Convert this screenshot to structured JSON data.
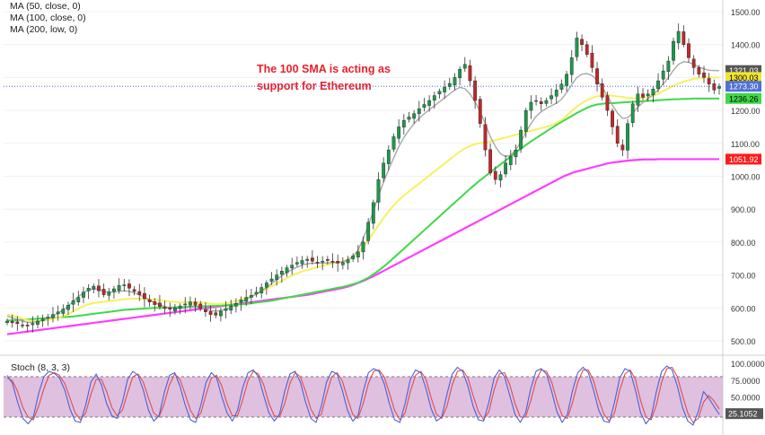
{
  "chart_data": {
    "type": "candlestick",
    "legends": [
      {
        "text": "MA (50, close, 0)"
      },
      {
        "text": "MA (100, close, 0)"
      },
      {
        "text": "MA (200, low, 0)"
      }
    ],
    "annotation": {
      "line1": "The 100 SMA is acting as",
      "line2": "support for Ethereum"
    },
    "price_axis": {
      "ticks": [
        "1500.00",
        "1400.00",
        "1300.00",
        "1200.00",
        "1100.00",
        "1000.00",
        "900.00",
        "800.00",
        "700.00",
        "600.00",
        "500.00"
      ],
      "tick_values": [
        1500,
        1400,
        1300,
        1200,
        1100,
        1000,
        900,
        800,
        700,
        600,
        500
      ],
      "ylim": [
        460,
        1540
      ]
    },
    "price_badges": [
      {
        "text": "1321.03",
        "value": 1321.03,
        "color": "#555555"
      },
      {
        "text": "1300.03",
        "value": 1300.03,
        "color": "#f2e52c"
      },
      {
        "text": "1273.30",
        "value": 1273.3,
        "color": "#4f6fd8"
      },
      {
        "text": "1236.26",
        "value": 1236.26,
        "color": "#3fd84a"
      },
      {
        "text": "1051.92",
        "value": 1051.92,
        "color": "#ff1a1a"
      }
    ],
    "current_price_line": 1273.3,
    "close_series": [
      560,
      555,
      552,
      548,
      545,
      553,
      560,
      566,
      572,
      580,
      588,
      596,
      608,
      622,
      632,
      648,
      660,
      666,
      652,
      640,
      648,
      658,
      668,
      670,
      660,
      650,
      640,
      628,
      618,
      610,
      604,
      598,
      596,
      600,
      606,
      612,
      618,
      608,
      598,
      588,
      580,
      578,
      590,
      598,
      606,
      614,
      624,
      632,
      638,
      648,
      662,
      676,
      688,
      700,
      712,
      722,
      730,
      738,
      744,
      748,
      742,
      738,
      742,
      744,
      740,
      736,
      738,
      746,
      758,
      770,
      800,
      860,
      920,
      990,
      1040,
      1080,
      1120,
      1150,
      1170,
      1180,
      1190,
      1205,
      1218,
      1230,
      1245,
      1258,
      1270,
      1282,
      1300,
      1325,
      1340,
      1290,
      1230,
      1160,
      1080,
      1010,
      990,
      1005,
      1040,
      1060,
      1080,
      1140,
      1200,
      1225,
      1230,
      1220,
      1230,
      1245,
      1262,
      1280,
      1310,
      1360,
      1420,
      1400,
      1370,
      1330,
      1280,
      1240,
      1200,
      1150,
      1100,
      1080,
      1160,
      1220,
      1250,
      1240,
      1250,
      1265,
      1290,
      1320,
      1350,
      1410,
      1440,
      1400,
      1360,
      1330,
      1310,
      1300,
      1280,
      1262,
      1273
    ],
    "ma50": [
      580,
      577,
      573,
      568,
      563,
      560,
      560,
      561,
      563,
      566,
      570,
      574,
      580,
      588,
      596,
      604,
      610,
      614,
      616,
      618,
      620,
      622,
      624,
      626,
      627,
      628,
      628,
      628,
      627,
      626,
      624,
      622,
      620,
      619,
      618,
      618,
      618,
      618,
      617,
      616,
      614,
      612,
      612,
      613,
      615,
      618,
      622,
      627,
      632,
      638,
      645,
      652,
      660,
      668,
      676,
      684,
      692,
      700,
      706,
      712,
      716,
      720,
      724,
      728,
      732,
      735,
      738,
      742,
      748,
      756,
      768,
      786,
      806,
      828,
      850,
      872,
      892,
      910,
      926,
      940,
      952,
      964,
      976,
      988,
      1000,
      1012,
      1024,
      1036,
      1048,
      1060,
      1072,
      1082,
      1090,
      1096,
      1100,
      1102,
      1104,
      1108,
      1112,
      1116,
      1120,
      1124,
      1128,
      1132,
      1136,
      1140,
      1144,
      1148,
      1152,
      1158,
      1166,
      1176,
      1190,
      1204,
      1216,
      1226,
      1234,
      1240,
      1244,
      1246,
      1246,
      1244,
      1242,
      1240,
      1238,
      1237,
      1237,
      1238,
      1241,
      1245,
      1252,
      1260,
      1268,
      1276,
      1282,
      1288,
      1292,
      1296,
      1298,
      1300,
      1300,
      1300,
      1300
    ],
    "ma100": [
      562,
      562,
      563,
      564,
      565,
      566,
      567,
      568,
      569,
      570,
      571,
      572,
      573,
      574,
      576,
      578,
      580,
      582,
      584,
      586,
      588,
      590,
      592,
      594,
      595,
      596,
      597,
      598,
      599,
      600,
      600,
      601,
      601,
      602,
      602,
      603,
      604,
      604,
      605,
      605,
      606,
      606,
      607,
      608,
      609,
      610,
      611,
      612,
      614,
      616,
      618,
      620,
      622,
      625,
      628,
      631,
      634,
      637,
      640,
      643,
      646,
      649,
      652,
      655,
      658,
      661,
      664,
      668,
      672,
      677,
      684,
      692,
      702,
      713,
      725,
      738,
      752,
      766,
      780,
      794,
      808,
      822,
      836,
      850,
      864,
      878,
      892,
      906,
      920,
      934,
      948,
      962,
      975,
      988,
      1000,
      1012,
      1024,
      1036,
      1048,
      1060,
      1072,
      1084,
      1095,
      1106,
      1116,
      1126,
      1136,
      1146,
      1156,
      1165,
      1174,
      1183,
      1192,
      1200,
      1208,
      1214,
      1218,
      1220,
      1222,
      1222,
      1223,
      1224,
      1225,
      1226,
      1227,
      1228,
      1229,
      1230,
      1231,
      1232,
      1233,
      1234,
      1234,
      1235,
      1235,
      1236,
      1236,
      1236,
      1236,
      1236,
      1236
    ],
    "ma200": [
      520,
      522,
      524,
      526,
      528,
      530,
      532,
      534,
      536,
      538,
      540,
      542,
      544,
      546,
      548,
      550,
      552,
      554,
      556,
      558,
      560,
      562,
      564,
      566,
      568,
      570,
      572,
      574,
      576,
      578,
      580,
      582,
      584,
      586,
      588,
      590,
      592,
      594,
      596,
      598,
      600,
      602,
      604,
      606,
      608,
      610,
      612,
      614,
      616,
      618,
      620,
      622,
      624,
      626,
      628,
      630,
      632,
      634,
      636,
      638,
      640,
      643,
      646,
      649,
      652,
      655,
      658,
      661,
      665,
      670,
      676,
      682,
      689,
      696,
      704,
      712,
      720,
      728,
      736,
      744,
      752,
      760,
      768,
      776,
      784,
      792,
      800,
      808,
      816,
      824,
      832,
      840,
      848,
      856,
      864,
      872,
      880,
      888,
      896,
      904,
      912,
      920,
      928,
      936,
      944,
      952,
      960,
      968,
      976,
      984,
      992,
      1000,
      1006,
      1012,
      1016,
      1020,
      1024,
      1028,
      1032,
      1036,
      1040,
      1042,
      1044,
      1046,
      1048,
      1049,
      1050,
      1051,
      1051,
      1051,
      1052,
      1052,
      1052,
      1052,
      1052,
      1052,
      1052,
      1052,
      1052,
      1052,
      1052,
      1052,
      1052
    ],
    "ma20_gray": [
      575,
      570,
      565,
      560,
      556,
      556,
      558,
      562,
      568,
      575,
      584,
      594,
      606,
      620,
      634,
      646,
      654,
      658,
      656,
      650,
      648,
      648,
      650,
      652,
      650,
      646,
      640,
      632,
      624,
      616,
      610,
      604,
      600,
      598,
      598,
      600,
      602,
      602,
      600,
      596,
      592,
      590,
      592,
      596,
      602,
      610,
      618,
      626,
      634,
      642,
      652,
      662,
      674,
      686,
      698,
      708,
      716,
      724,
      730,
      734,
      736,
      736,
      736,
      737,
      738,
      738,
      740,
      746,
      756,
      776,
      810,
      850,
      894,
      940,
      982,
      1020,
      1056,
      1090,
      1118,
      1140,
      1160,
      1176,
      1190,
      1202,
      1214,
      1226,
      1238,
      1250,
      1262,
      1270,
      1266,
      1250,
      1226,
      1196,
      1160,
      1120,
      1090,
      1068,
      1060,
      1064,
      1080,
      1104,
      1134,
      1160,
      1182,
      1196,
      1206,
      1214,
      1222,
      1234,
      1254,
      1278,
      1300,
      1310,
      1312,
      1306,
      1292,
      1270,
      1244,
      1216,
      1192,
      1176,
      1178,
      1192,
      1210,
      1224,
      1236,
      1248,
      1262,
      1280,
      1300,
      1322,
      1340,
      1348,
      1346,
      1340,
      1332,
      1326,
      1322,
      1321,
      1321
    ],
    "stochastic": {
      "label": "Stoch (8, 3, 3)",
      "ticks": [
        "100.0000",
        "75.0000",
        "50.0000",
        "25.0000"
      ],
      "tick_values": [
        100,
        75,
        50,
        25
      ],
      "bands": [
        20,
        80
      ],
      "ylim": [
        0,
        105
      ],
      "badge": {
        "text": "25.1052",
        "value": 25.1052
      },
      "k": [
        82,
        70,
        42,
        18,
        10,
        20,
        55,
        80,
        88,
        85,
        78,
        60,
        32,
        14,
        12,
        38,
        72,
        84,
        68,
        40,
        22,
        18,
        42,
        76,
        88,
        82,
        60,
        30,
        14,
        22,
        56,
        82,
        86,
        66,
        38,
        16,
        12,
        38,
        72,
        86,
        78,
        50,
        26,
        14,
        30,
        64,
        86,
        90,
        80,
        52,
        26,
        14,
        24,
        58,
        84,
        88,
        72,
        42,
        18,
        12,
        36,
        72,
        88,
        84,
        60,
        30,
        14,
        22,
        58,
        86,
        92,
        88,
        70,
        40,
        16,
        12,
        40,
        76,
        90,
        86,
        62,
        32,
        14,
        20,
        54,
        84,
        94,
        88,
        66,
        36,
        16,
        14,
        42,
        78,
        90,
        80,
        52,
        24,
        12,
        26,
        62,
        88,
        92,
        84,
        58,
        28,
        12,
        24,
        60,
        86,
        94,
        86,
        60,
        30,
        14,
        12,
        42,
        78,
        92,
        88,
        60,
        26,
        10,
        20,
        58,
        88,
        96,
        90,
        66,
        34,
        14,
        8,
        28,
        58,
        48,
        36,
        24
      ],
      "d": [
        78,
        74,
        58,
        34,
        20,
        16,
        36,
        62,
        82,
        86,
        82,
        70,
        48,
        26,
        16,
        26,
        54,
        76,
        76,
        58,
        34,
        22,
        30,
        56,
        80,
        84,
        72,
        48,
        26,
        20,
        40,
        68,
        84,
        76,
        54,
        30,
        18,
        26,
        54,
        78,
        82,
        66,
        40,
        22,
        22,
        46,
        74,
        88,
        84,
        68,
        40,
        22,
        20,
        40,
        70,
        86,
        80,
        58,
        32,
        18,
        24,
        54,
        80,
        86,
        74,
        48,
        24,
        18,
        40,
        70,
        88,
        90,
        80,
        56,
        30,
        16,
        26,
        58,
        82,
        88,
        76,
        48,
        24,
        18,
        36,
        68,
        88,
        90,
        78,
        52,
        28,
        16,
        28,
        60,
        84,
        86,
        68,
        40,
        20,
        20,
        44,
        74,
        90,
        88,
        72,
        44,
        22,
        18,
        42,
        72,
        90,
        90,
        74,
        46,
        24,
        14,
        26,
        60,
        84,
        90,
        76,
        44,
        20,
        16,
        38,
        72,
        92,
        94,
        80,
        52,
        26,
        12,
        18,
        42,
        52,
        44,
        32
      ]
    }
  }
}
